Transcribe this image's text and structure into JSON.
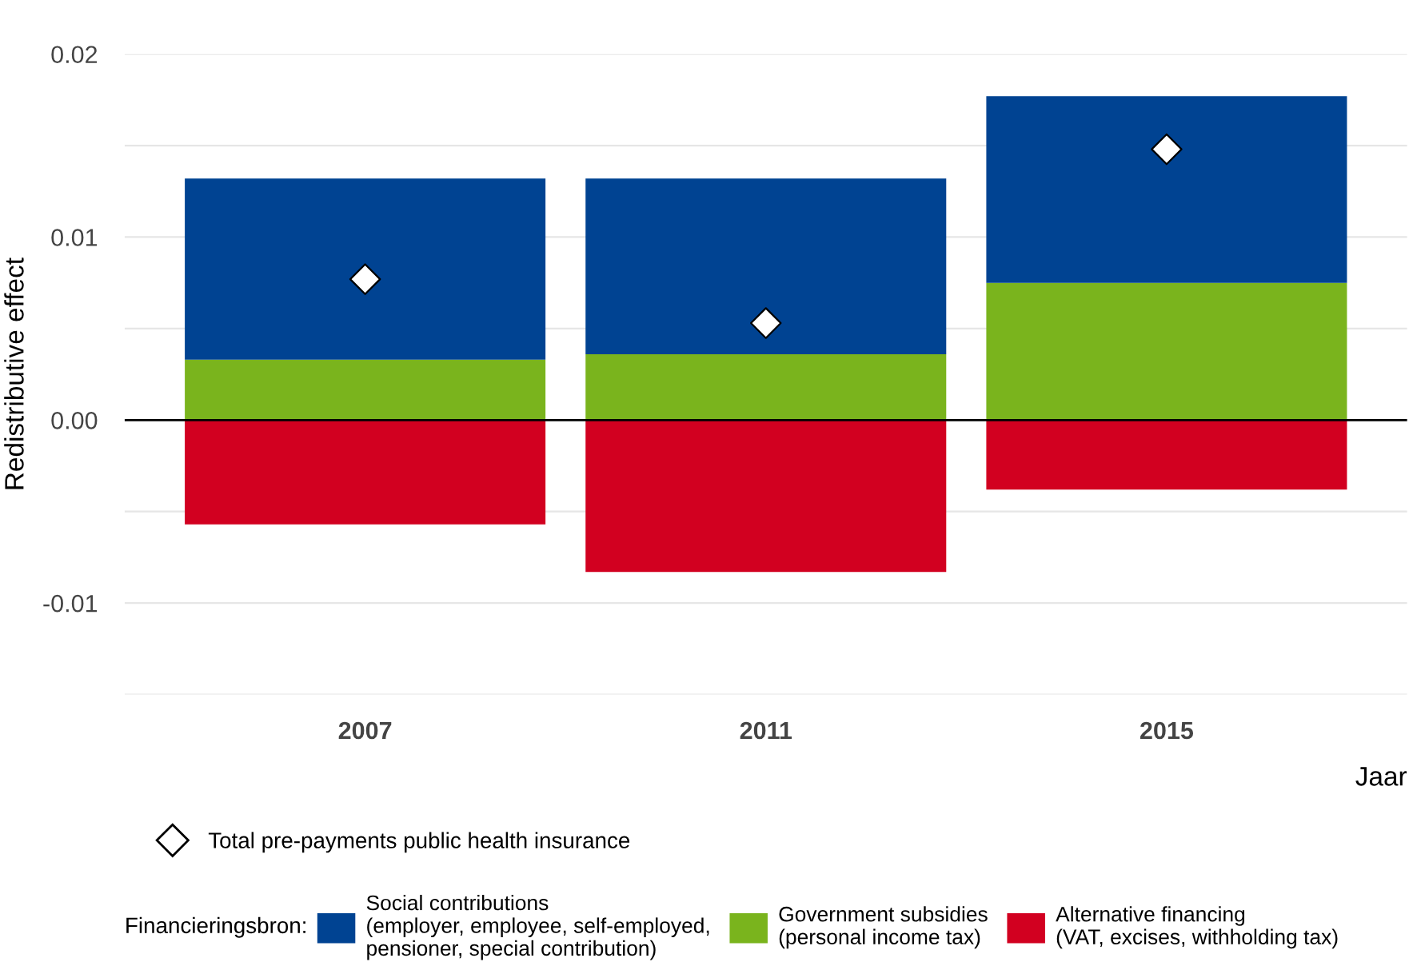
{
  "chart_data": {
    "type": "bar",
    "stacked": true,
    "ylabel": "Redistributive effect",
    "xlabel": "Jaar",
    "legend_title": "Financieringsbron:",
    "categories": [
      "2007",
      "2011",
      "2015"
    ],
    "series": [
      {
        "name": "Alternative financing\n(VAT, excises, withholding tax)",
        "color": "#d20020",
        "values": [
          -0.0057,
          -0.0083,
          -0.0038
        ]
      },
      {
        "name": "Government subsidies\n(personal income tax)",
        "color": "#7ab41d",
        "values": [
          0.0033,
          0.0036,
          0.0075
        ]
      },
      {
        "name": "Social contributions\n(employer, employee, self-employed,\npensioner, special contribution)",
        "color": "#004392",
        "values": [
          0.0099,
          0.0096,
          0.0102
        ]
      },
      {
        "name": "Total pre-payments public health insurance",
        "type": "scatter",
        "marker": "diamond",
        "color": "#ffffff",
        "values": [
          0.0077,
          0.0053,
          0.0148
        ]
      }
    ],
    "ylim": [
      -0.015,
      0.02
    ],
    "yticks": [
      {
        "value": -0.015,
        "label": null
      },
      {
        "value": -0.01,
        "label": "-0.01"
      },
      {
        "value": -0.005,
        "label": null
      },
      {
        "value": 0,
        "label": "0.00"
      },
      {
        "value": 0.005,
        "label": null
      },
      {
        "value": 0.01,
        "label": "0.01"
      },
      {
        "value": 0.015,
        "label": null
      },
      {
        "value": 0.02,
        "label": "0.02"
      }
    ],
    "ref_lines": [
      {
        "axis": "y",
        "value": 0,
        "color": "#000000"
      }
    ],
    "grid": "y",
    "legend": "bottom"
  }
}
